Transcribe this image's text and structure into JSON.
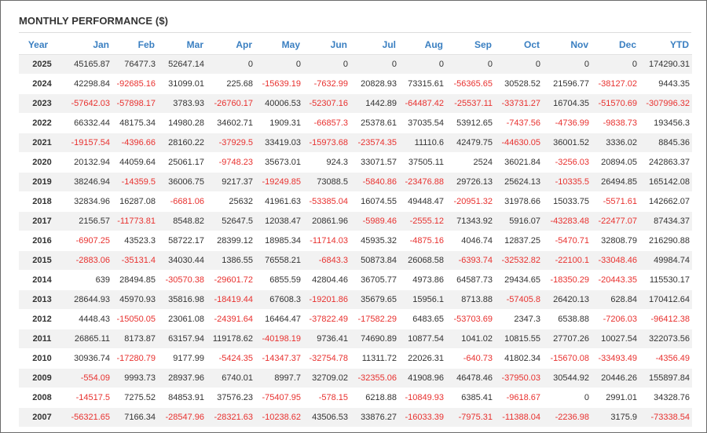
{
  "title": "MONTHLY PERFORMANCE ($)",
  "colors": {
    "header_text": "#3a7fc1",
    "negative": "#e8312f",
    "row_stripe": "#f2f2f2"
  },
  "columns": [
    "Year",
    "Jan",
    "Feb",
    "Mar",
    "Apr",
    "May",
    "Jun",
    "Jul",
    "Aug",
    "Sep",
    "Oct",
    "Nov",
    "Dec",
    "YTD"
  ],
  "rows": [
    [
      "2025",
      "45165.87",
      "76477.3",
      "52647.14",
      "0",
      "0",
      "0",
      "0",
      "0",
      "0",
      "0",
      "0",
      "0",
      "174290.31"
    ],
    [
      "2024",
      "42298.84",
      "-92685.16",
      "31099.01",
      "225.68",
      "-15639.19",
      "-7632.99",
      "20828.93",
      "73315.61",
      "-56365.65",
      "30528.52",
      "21596.77",
      "-38127.02",
      "9443.35"
    ],
    [
      "2023",
      "-57642.03",
      "-57898.17",
      "3783.93",
      "-26760.17",
      "40006.53",
      "-52307.16",
      "1442.89",
      "-64487.42",
      "-25537.11",
      "-33731.27",
      "16704.35",
      "-51570.69",
      "-307996.32"
    ],
    [
      "2022",
      "66332.44",
      "48175.34",
      "14980.28",
      "34602.71",
      "1909.31",
      "-66857.3",
      "25378.61",
      "37035.54",
      "53912.65",
      "-7437.56",
      "-4736.99",
      "-9838.73",
      "193456.3"
    ],
    [
      "2021",
      "-19157.54",
      "-4396.66",
      "28160.22",
      "-37929.5",
      "33419.03",
      "-15973.68",
      "-23574.35",
      "11110.6",
      "42479.75",
      "-44630.05",
      "36001.52",
      "3336.02",
      "8845.36"
    ],
    [
      "2020",
      "20132.94",
      "44059.64",
      "25061.17",
      "-9748.23",
      "35673.01",
      "924.3",
      "33071.57",
      "37505.11",
      "2524",
      "36021.84",
      "-3256.03",
      "20894.05",
      "242863.37"
    ],
    [
      "2019",
      "38246.94",
      "-14359.5",
      "36006.75",
      "9217.37",
      "-19249.85",
      "73088.5",
      "-5840.86",
      "-23476.88",
      "29726.13",
      "25624.13",
      "-10335.5",
      "26494.85",
      "165142.08"
    ],
    [
      "2018",
      "32834.96",
      "16287.08",
      "-6681.06",
      "25632",
      "41961.63",
      "-53385.04",
      "16074.55",
      "49448.47",
      "-20951.32",
      "31978.66",
      "15033.75",
      "-5571.61",
      "142662.07"
    ],
    [
      "2017",
      "2156.57",
      "-11773.81",
      "8548.82",
      "52647.5",
      "12038.47",
      "20861.96",
      "-5989.46",
      "-2555.12",
      "71343.92",
      "5916.07",
      "-43283.48",
      "-22477.07",
      "87434.37"
    ],
    [
      "2016",
      "-6907.25",
      "43523.3",
      "58722.17",
      "28399.12",
      "18985.34",
      "-11714.03",
      "45935.32",
      "-4875.16",
      "4046.74",
      "12837.25",
      "-5470.71",
      "32808.79",
      "216290.88"
    ],
    [
      "2015",
      "-2883.06",
      "-35131.4",
      "34030.44",
      "1386.55",
      "76558.21",
      "-6843.3",
      "50873.84",
      "26068.58",
      "-6393.74",
      "-32532.82",
      "-22100.1",
      "-33048.46",
      "49984.74"
    ],
    [
      "2014",
      "639",
      "28494.85",
      "-30570.38",
      "-29601.72",
      "6855.59",
      "42804.46",
      "36705.77",
      "4973.86",
      "64587.73",
      "29434.65",
      "-18350.29",
      "-20443.35",
      "115530.17"
    ],
    [
      "2013",
      "28644.93",
      "45970.93",
      "35816.98",
      "-18419.44",
      "67608.3",
      "-19201.86",
      "35679.65",
      "15956.1",
      "8713.88",
      "-57405.8",
      "26420.13",
      "628.84",
      "170412.64"
    ],
    [
      "2012",
      "4448.43",
      "-15050.05",
      "23061.08",
      "-24391.64",
      "16464.47",
      "-37822.49",
      "-17582.29",
      "6483.65",
      "-53703.69",
      "2347.3",
      "6538.88",
      "-7206.03",
      "-96412.38"
    ],
    [
      "2011",
      "26865.11",
      "8173.87",
      "63157.94",
      "119178.62",
      "-40198.19",
      "9736.41",
      "74690.89",
      "10877.54",
      "1041.02",
      "10815.55",
      "27707.26",
      "10027.54",
      "322073.56"
    ],
    [
      "2010",
      "30936.74",
      "-17280.79",
      "9177.99",
      "-5424.35",
      "-14347.37",
      "-32754.78",
      "11311.72",
      "22026.31",
      "-640.73",
      "41802.34",
      "-15670.08",
      "-33493.49",
      "-4356.49"
    ],
    [
      "2009",
      "-554.09",
      "9993.73",
      "28937.96",
      "6740.01",
      "8997.7",
      "32709.02",
      "-32355.06",
      "41908.96",
      "46478.46",
      "-37950.03",
      "30544.92",
      "20446.26",
      "155897.84"
    ],
    [
      "2008",
      "-14517.5",
      "7275.52",
      "84853.91",
      "37576.23",
      "-75407.95",
      "-578.15",
      "6218.88",
      "-10849.93",
      "6385.41",
      "-9618.67",
      "0",
      "2991.01",
      "34328.76"
    ],
    [
      "2007",
      "-56321.65",
      "7166.34",
      "-28547.96",
      "-28321.63",
      "-10238.62",
      "43506.53",
      "33876.27",
      "-16033.39",
      "-7975.31",
      "-11388.04",
      "-2236.98",
      "3175.9",
      "-73338.54"
    ]
  ]
}
